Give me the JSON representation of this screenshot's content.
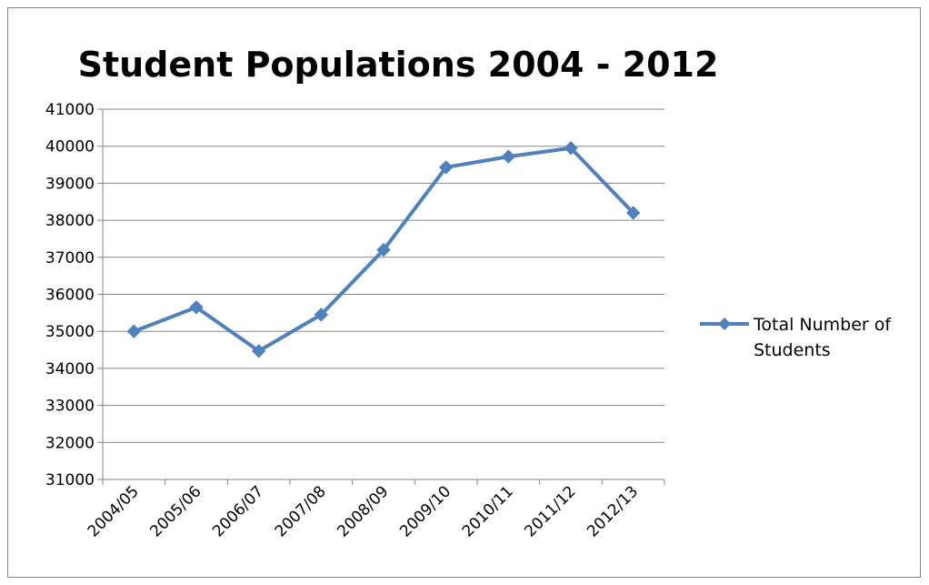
{
  "chart_data": {
    "type": "line",
    "title": "Student Populations 2004 - 2012",
    "xlabel": "",
    "ylabel": "",
    "categories": [
      "2004/05",
      "2005/06",
      "2006/07",
      "2007/08",
      "2008/09",
      "2009/10",
      "2010/11",
      "2011/12",
      "2012/13"
    ],
    "series": [
      {
        "name": "Total Number of Students",
        "values": [
          35000,
          35650,
          34470,
          35450,
          37200,
          39430,
          39720,
          39950,
          38200
        ],
        "color": "#4f81bd",
        "marker": "diamond"
      }
    ],
    "ylim": [
      31000,
      41000
    ],
    "y_tick_step": 1000,
    "grid": "horizontal",
    "legend_position": "right",
    "legend_lines": [
      "Total Number of",
      "Students"
    ]
  }
}
